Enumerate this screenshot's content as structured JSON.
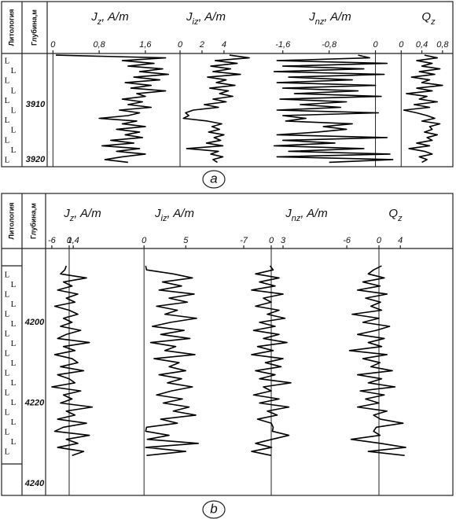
{
  "chart_data": [
    {
      "type": "line",
      "label": "a",
      "color": "#000000",
      "lithology_title": "Литология",
      "depth_title": "Глубина,м",
      "lithology": [
        "L",
        "L",
        "L",
        "L",
        "L",
        "L",
        "L",
        "L",
        "L",
        "L",
        "L"
      ],
      "ylim": [
        3900.7,
        3921.3
      ],
      "yticks": [
        3910,
        3920
      ],
      "depth": [
        3901,
        3901.5,
        3902,
        3902.5,
        3903,
        3903.5,
        3904,
        3904.5,
        3905,
        3905.5,
        3906,
        3906.5,
        3907,
        3907.5,
        3908,
        3908.5,
        3909,
        3909.5,
        3910,
        3910.5,
        3911,
        3911.5,
        3912,
        3912.5,
        3913,
        3913.5,
        3914,
        3914.5,
        3915,
        3915.5,
        3916,
        3916.5,
        3917,
        3917.5,
        3918,
        3918.5,
        3919,
        3919.5,
        3920,
        3920.5
      ],
      "tracks": [
        {
          "title": {
            "symbol": "J",
            "index": "z",
            "unit": ", A/m"
          },
          "xlim": [
            -0.1,
            2.2
          ],
          "xticks": [
            0,
            {
              "value": 0.8,
              "label": "0,8"
            },
            {
              "value": 1.6,
              "label": "1,6"
            }
          ],
          "values": [
            0.05,
            1.95,
            1.2,
            1.75,
            1.3,
            1.9,
            1.5,
            2.0,
            1.4,
            1.85,
            1.25,
            1.7,
            1.35,
            1.95,
            1.45,
            1.6,
            1.2,
            1.55,
            1.3,
            1.7,
            1.15,
            1.5,
            1.3,
            0.8,
            1.45,
            1.2,
            1.6,
            1.1,
            1.5,
            1.25,
            1.55,
            1.0,
            1.4,
            0.85,
            1.5,
            1.1,
            1.6,
            1.2,
            0.9,
            1.3
          ]
        },
        {
          "title": {
            "symbol": "J",
            "index": "iz",
            "unit": ", A/m"
          },
          "xlim": [
            0,
            8.3
          ],
          "xticks": [
            0,
            2,
            4
          ],
          "values": [
            4.5,
            6.3,
            3.2,
            5.2,
            2.8,
            4.6,
            3.0,
            5.5,
            2.5,
            4.2,
            3.3,
            5.0,
            2.7,
            4.4,
            3.6,
            4.8,
            3.0,
            4.2,
            2.2,
            3.5,
            1.2,
            0.5,
            0.8,
            0.3,
            2.5,
            3.8,
            2.9,
            3.6,
            2.6,
            4.0,
            3.1,
            3.7,
            2.4,
            3.9,
            0.6,
            3.5,
            2.8,
            3.9,
            3.0,
            3.4
          ]
        },
        {
          "title": {
            "symbol": "J",
            "index": "nz",
            "unit": ", A/m"
          },
          "xlim": [
            -1.8,
            0.4
          ],
          "xticks": [
            {
              "value": -1.6,
              "label": "-1,6"
            },
            {
              "value": -0.8,
              "label": "-0,8"
            },
            0
          ],
          "values": [
            -0.3,
            -0.1,
            -1.7,
            0.2,
            -1.6,
            -0.2,
            -1.75,
            0.15,
            -1.5,
            -0.4,
            -1.7,
            0.0,
            -1.6,
            -0.3,
            -1.4,
            0.1,
            -1.65,
            -0.5,
            -1.3,
            -0.6,
            -1.7,
            0.05,
            -1.6,
            -1.2,
            -1.55,
            -0.4,
            -0.9,
            -0.5,
            -1.0,
            -1.7,
            0.2,
            -1.6,
            -0.7,
            -1.75,
            -0.2,
            -1.5,
            0.25,
            -1.7,
            0.3,
            -0.8
          ]
        },
        {
          "title": {
            "symbol": "Q",
            "index": "z"
          },
          "xlim": [
            -0.05,
            1.0
          ],
          "xticks": [
            0,
            {
              "value": 0.4,
              "label": "0,4"
            },
            {
              "value": 0.8,
              "label": "0,8"
            }
          ],
          "values": [
            0.45,
            0.7,
            0.3,
            0.6,
            0.4,
            0.75,
            0.35,
            0.65,
            0.2,
            0.55,
            0.4,
            0.8,
            0.3,
            0.6,
            0.1,
            0.5,
            0.35,
            0.7,
            0.25,
            0.55,
            0.05,
            0.3,
            0.5,
            0.65,
            0.4,
            0.75,
            0.55,
            0.6,
            0.45,
            0.7,
            0.5,
            0.6,
            0.3,
            0.55,
            0.15,
            0.45,
            0.6,
            0.35,
            0.5,
            0.4
          ]
        }
      ]
    },
    {
      "type": "line",
      "label": "b",
      "color": "#000000",
      "lithology_title": "Литология",
      "depth_title": "Глубина,м",
      "lithology": [
        "L",
        "L",
        "L",
        "L",
        "L",
        "L",
        "L",
        "L",
        "L",
        "L",
        "L",
        "L",
        "L",
        "L",
        "L",
        "L",
        "L",
        "L",
        "L"
      ],
      "ylim": [
        4181.7,
        4242.9
      ],
      "yticks": [
        4200,
        4220,
        4240
      ],
      "depth": [
        4186,
        4187,
        4188,
        4189,
        4190,
        4191,
        4192,
        4193,
        4194,
        4195,
        4196,
        4197,
        4198,
        4199,
        4200,
        4201,
        4202,
        4203,
        4204,
        4205,
        4206,
        4207,
        4208,
        4209,
        4210,
        4211,
        4212,
        4213,
        4214,
        4215,
        4216,
        4217,
        4218,
        4219,
        4220,
        4221,
        4222,
        4223,
        4224,
        4225,
        4226,
        4227,
        4228,
        4229,
        4230,
        4231,
        4232,
        4233
      ],
      "tracks": [
        {
          "title": {
            "symbol": "J",
            "index": "z",
            "unit": ", A/m"
          },
          "xlim": [
            -7.6,
            25
          ],
          "xticks": [
            -6,
            0,
            {
              "value": 1.4,
              "label": "1,4"
            }
          ],
          "values": [
            -1,
            -1.5,
            -3,
            6,
            -2,
            1,
            -4,
            3,
            -1,
            2,
            -5,
            0,
            3,
            -2,
            1,
            -3,
            4,
            -1,
            -4,
            7,
            -2,
            2,
            -5,
            1,
            3,
            -3,
            5,
            -4,
            0,
            2,
            -6,
            4,
            -2,
            1,
            -3,
            8,
            -1,
            2,
            -4,
            6,
            -2,
            -5,
            7,
            -1,
            3,
            -4,
            5,
            1
          ]
        },
        {
          "title": {
            "symbol": "J",
            "index": "iz",
            "unit": ", A/m"
          },
          "xlim": [
            -0.3,
            11
          ],
          "xticks": [
            0,
            5
          ],
          "values": [
            0.2,
            0.3,
            3.5,
            5.8,
            2.2,
            4.5,
            1.8,
            6.0,
            3.0,
            5.2,
            1.5,
            4.0,
            2.5,
            6.3,
            3.2,
            1.0,
            4.8,
            2.0,
            5.5,
            0.8,
            3.8,
            2.5,
            6.1,
            1.2,
            4.2,
            3.0,
            5.0,
            1.8,
            4.5,
            2.8,
            5.8,
            3.3,
            1.5,
            4.6,
            2.3,
            5.4,
            3.5,
            6.2,
            2.0,
            4.0,
            0.3,
            0.2,
            3.0,
            0.4,
            6.5,
            0.2,
            5.0,
            0.3
          ]
        },
        {
          "title": {
            "symbol": "J",
            "index": "nz",
            "unit": ", A/m"
          },
          "xlim": [
            -9,
            15
          ],
          "xticks": [
            -7,
            0,
            3
          ],
          "values": [
            -0.3,
            0.5,
            -4,
            2,
            -3,
            1,
            -5,
            3,
            -2,
            0,
            -4,
            2,
            -1,
            3.5,
            -3,
            1,
            -4.5,
            2,
            -2,
            4,
            -3.5,
            0.5,
            -5,
            3,
            -1.5,
            2.5,
            -4,
            1,
            -3,
            5,
            -2,
            0,
            -4.5,
            2,
            -3,
            4.5,
            -1,
            1.5,
            -3.5,
            0,
            0.5,
            0.3,
            4.5,
            0.2,
            -4,
            0.1,
            -5,
            0
          ]
        },
        {
          "title": {
            "symbol": "Q",
            "index": "z"
          },
          "xlim": [
            -9.1,
            13.8
          ],
          "xticks": [
            -6,
            0,
            4
          ],
          "values": [
            0.5,
            -1,
            -2,
            1,
            -3,
            0.2,
            -4,
            1.5,
            -2.5,
            0.3,
            -1.5,
            0.5,
            -5,
            0,
            -3,
            2,
            -0.5,
            -4,
            1,
            -2,
            0.5,
            -5.5,
            1.5,
            -3,
            0.2,
            -1.5,
            2.5,
            -4,
            0.5,
            -2,
            3,
            -3.5,
            1,
            -2.5,
            0,
            -4,
            1.5,
            -1,
            0.3,
            4.5,
            -0.5,
            -1,
            0.2,
            -5.2,
            0.3,
            5,
            -2,
            4.8
          ]
        }
      ]
    }
  ]
}
